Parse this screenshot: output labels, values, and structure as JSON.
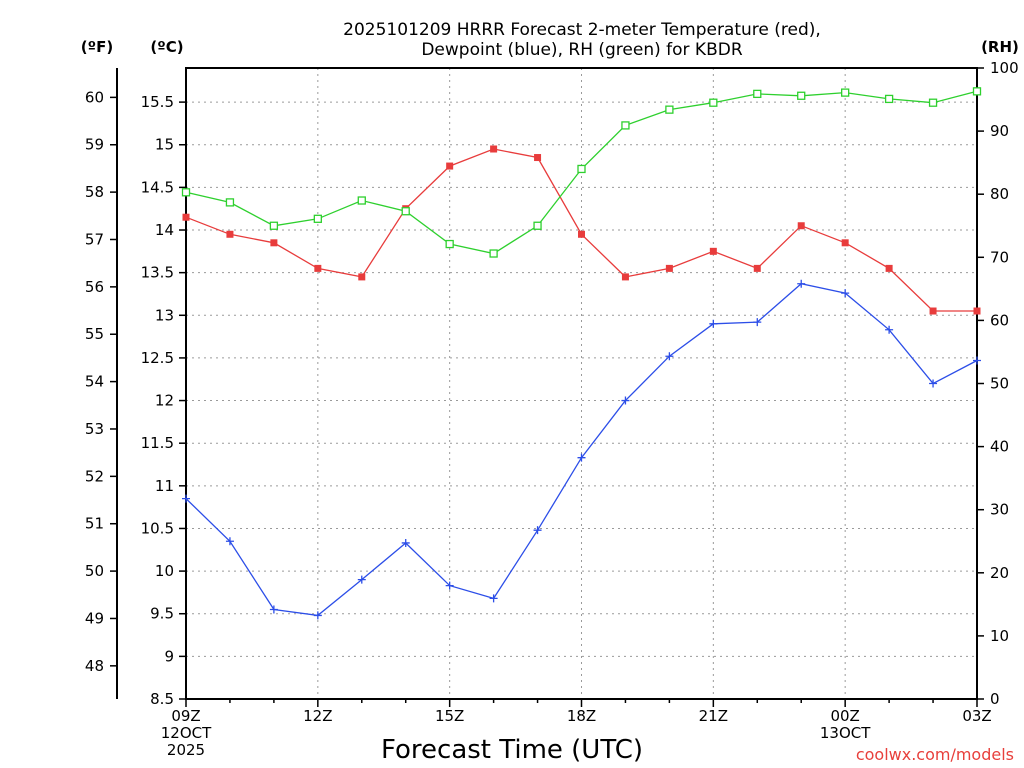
{
  "chart_data": {
    "type": "line",
    "title": [
      "2025101209 HRRR Forecast 2-meter Temperature (red),",
      "Dewpoint (blue), RH (green) for KBDR"
    ],
    "xlabel": "Forecast Time (UTC)",
    "credit": "coolwx.com/models",
    "units": {
      "fahrenheit": "(ºF)",
      "celsius": "(ºC)",
      "rh": "(RH)"
    },
    "x_hours": [
      9,
      10,
      11,
      12,
      13,
      14,
      15,
      16,
      17,
      18,
      19,
      20,
      21,
      22,
      23,
      24,
      25,
      26,
      27
    ],
    "xlim": [
      9,
      27
    ],
    "x_ticks": [
      {
        "hour": 9,
        "lines": [
          "09Z",
          "12OCT",
          "2025"
        ]
      },
      {
        "hour": 12,
        "lines": [
          "12Z"
        ]
      },
      {
        "hour": 15,
        "lines": [
          "15Z"
        ]
      },
      {
        "hour": 18,
        "lines": [
          "18Z"
        ]
      },
      {
        "hour": 21,
        "lines": [
          "21Z"
        ]
      },
      {
        "hour": 24,
        "lines": [
          "00Z",
          "13OCT"
        ]
      },
      {
        "hour": 27,
        "lines": [
          "03Z"
        ]
      }
    ],
    "ylim_c": [
      8.5,
      15.9
    ],
    "ylim_rh": [
      0,
      100
    ],
    "celsius_ticks": [
      "8.5",
      "9",
      "9.5",
      "10",
      "10.5",
      "11",
      "11.5",
      "12",
      "12.5",
      "13",
      "13.5",
      "14",
      "14.5",
      "15",
      "15.5"
    ],
    "fahrenheit_ticks": [
      "48",
      "49",
      "50",
      "51",
      "52",
      "53",
      "54",
      "55",
      "56",
      "57",
      "58",
      "59",
      "60"
    ],
    "rh_ticks": [
      "0",
      "10",
      "20",
      "30",
      "40",
      "50",
      "60",
      "70",
      "80",
      "90",
      "100"
    ],
    "series": [
      {
        "name": "Temperature",
        "axis": "c",
        "color": "#e83c3c",
        "marker": "filled-square",
        "values": [
          14.15,
          13.95,
          13.85,
          13.55,
          13.45,
          14.25,
          14.75,
          14.95,
          14.85,
          13.95,
          13.45,
          13.55,
          13.75,
          13.55,
          14.05,
          13.85,
          13.55,
          13.05,
          13.05
        ]
      },
      {
        "name": "Dewpoint",
        "axis": "c",
        "color": "#2c4ee8",
        "marker": "plus",
        "values": [
          10.85,
          10.35,
          9.55,
          9.48,
          9.9,
          10.33,
          9.83,
          9.68,
          10.48,
          11.33,
          12.0,
          12.52,
          12.9,
          12.92,
          13.37,
          13.26,
          12.83,
          12.2,
          12.47
        ]
      },
      {
        "name": "RH",
        "axis": "rh",
        "color": "#2ed02e",
        "marker": "open-square",
        "values": [
          80.3,
          78.7,
          75.0,
          76.1,
          79.0,
          77.3,
          72.1,
          70.6,
          75.0,
          84.0,
          90.9,
          93.4,
          94.5,
          95.9,
          95.6,
          96.1,
          95.1,
          94.5,
          96.3
        ]
      }
    ]
  }
}
